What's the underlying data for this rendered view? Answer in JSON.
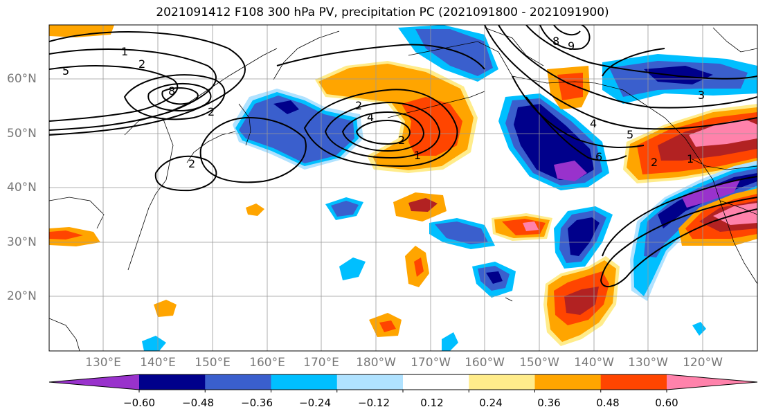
{
  "title": "2021091412 F108 300 hPa PV, precipitation PC (2021091800 - 2021091900)",
  "lat_labels": [
    "60°N",
    "50°N",
    "40°N",
    "30°N",
    "20°N"
  ],
  "lon_labels": [
    "130°E",
    "140°E",
    "150°E",
    "160°E",
    "170°E",
    "180°W",
    "170°W",
    "160°W",
    "150°W",
    "140°W",
    "130°W",
    "120°W"
  ],
  "colorbar": {
    "colors": [
      "#9932cc",
      "#00008b",
      "#3a5fcd",
      "#00bfff",
      "#b0e2ff",
      "#ffffff",
      "#ffec8b",
      "#ffa500",
      "#ff4500",
      "#b22222",
      "#ff82ab"
    ],
    "tick_labels": [
      "−0.60",
      "−0.48",
      "−0.36",
      "−0.24",
      "−0.12",
      "0.12",
      "0.24",
      "0.36",
      "0.48",
      "0.60"
    ]
  },
  "contour_labels": [
    "1",
    "2",
    "2",
    "8",
    "5",
    "2",
    "2",
    "4",
    "2",
    "1",
    "8",
    "9",
    "4",
    "5",
    "6",
    "3",
    "2",
    "1"
  ]
}
